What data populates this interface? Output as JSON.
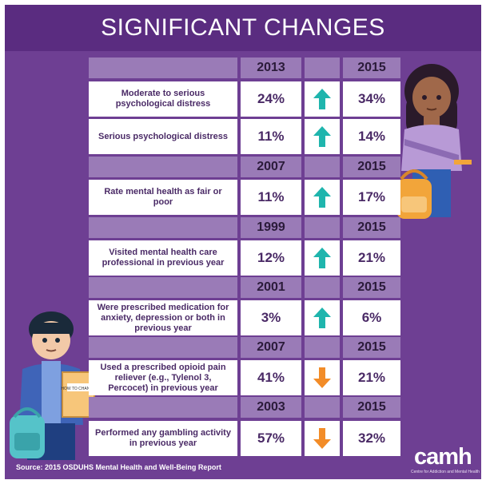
{
  "title": "SIGNIFICANT CHANGES",
  "colors": {
    "background": "#6e3f93",
    "header": "#5a2c80",
    "header_row": "#9a7bb7",
    "arrow_up": "#1fb5ad",
    "arrow_down": "#f28c28"
  },
  "groups": [
    {
      "year_from": "2013",
      "year_to": "2015",
      "rows": [
        {
          "label": "Moderate to serious psychological distress",
          "from": "24%",
          "to": "34%",
          "trend": "up"
        },
        {
          "label": "Serious psychological distress",
          "from": "11%",
          "to": "14%",
          "trend": "up"
        }
      ]
    },
    {
      "year_from": "2007",
      "year_to": "2015",
      "rows": [
        {
          "label": "Rate mental health as fair or poor",
          "from": "11%",
          "to": "17%",
          "trend": "up"
        }
      ]
    },
    {
      "year_from": "1999",
      "year_to": "2015",
      "rows": [
        {
          "label": "Visited mental health care professional in previous year",
          "from": "12%",
          "to": "21%",
          "trend": "up"
        }
      ]
    },
    {
      "year_from": "2001",
      "year_to": "2015",
      "rows": [
        {
          "label": "Were prescribed medication for anxiety, depression or both in previous year",
          "from": "3%",
          "to": "6%",
          "trend": "up"
        }
      ]
    },
    {
      "year_from": "2007",
      "year_to": "2015",
      "rows": [
        {
          "label": "Used a prescribed opioid pain reliever (e.g., Tylenol 3, Percocet) in previous year",
          "from": "41%",
          "to": "21%",
          "trend": "down"
        }
      ]
    },
    {
      "year_from": "2003",
      "year_to": "2015",
      "rows": [
        {
          "label": "Performed any gambling activity in previous year",
          "from": "57%",
          "to": "32%",
          "trend": "down"
        }
      ]
    }
  ],
  "book_text": "HOW TO CHANGE",
  "source": "Source: 2015 OSDUHS Mental Health and Well-Being Report",
  "logo": "camh",
  "logo_subtitle": "Centre for Addiction and Mental Health"
}
